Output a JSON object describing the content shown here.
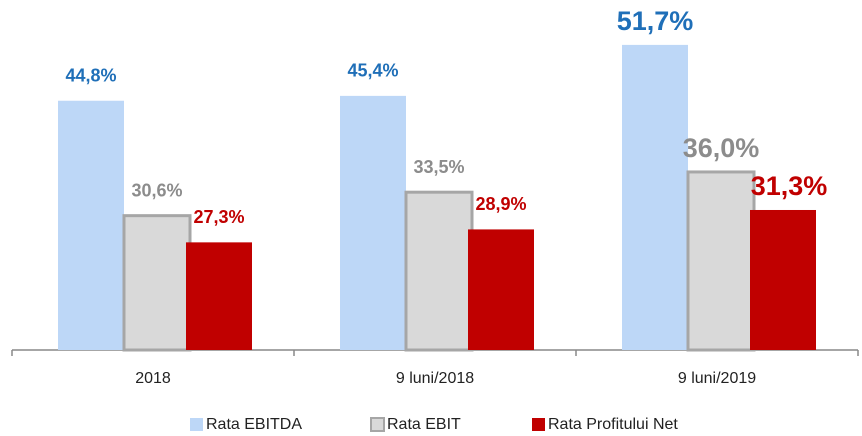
{
  "chart_data": {
    "type": "bar",
    "categories": [
      "2018",
      "9 luni/2018",
      "9 luni/2019"
    ],
    "series": [
      {
        "name": "Rata EBITDA",
        "color": "#bdd7f7",
        "label_color": "#1f6fb8",
        "values": [
          44.8,
          45.4,
          51.7
        ],
        "value_labels": [
          "44,8%",
          "45,4%",
          "51,7%"
        ]
      },
      {
        "name": "Rata EBIT",
        "color": "#d9d9d9",
        "label_color": "#8c8c8c",
        "values": [
          30.6,
          33.5,
          36.0
        ],
        "value_labels": [
          "30,6%",
          "33,5%",
          "36,0%"
        ]
      },
      {
        "name": "Rata Profitului Net",
        "color": "#c00000",
        "label_color": "#c00000",
        "values": [
          27.3,
          28.9,
          31.3
        ],
        "value_labels": [
          "27,3%",
          "28,9%",
          "31,3%"
        ]
      }
    ],
    "ylim": [
      14,
      57
    ],
    "legend": "bottom"
  }
}
